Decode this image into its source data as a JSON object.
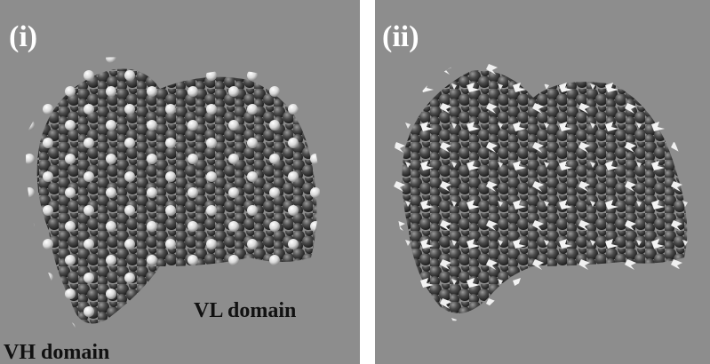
{
  "panels": [
    {
      "label": "(i)"
    },
    {
      "label": "(ii)"
    }
  ],
  "annotations": [
    "VL domain",
    "VH domain"
  ]
}
